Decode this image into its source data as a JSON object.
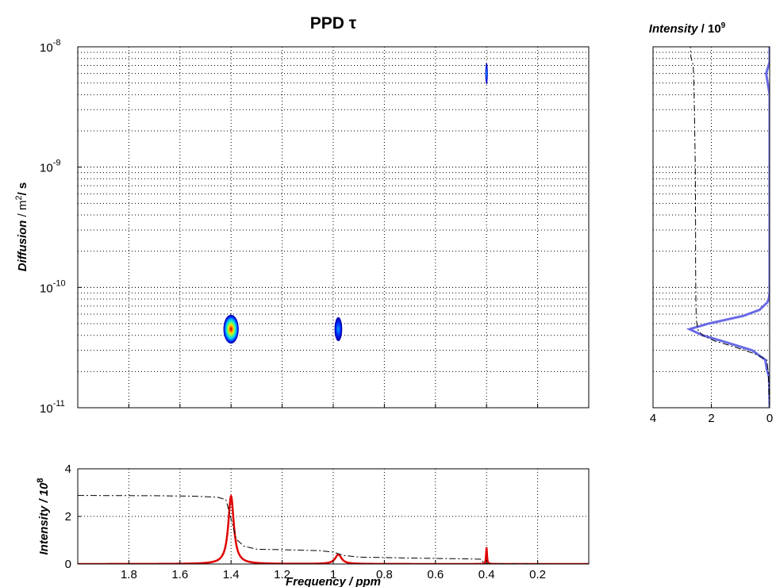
{
  "chart_data": [
    {
      "panel": "main-2d",
      "type": "heatmap",
      "title": "PPD τ",
      "xlabel": "Frequency /  ppm",
      "ylabel_prefix": "Diffusion",
      "ylabel_unit_base": "/  m",
      "ylabel_unit_sup": "2",
      "ylabel_unit_tail": "/ s",
      "xlim": [
        2.0,
        0.0
      ],
      "ylim": [
        1e-11,
        1e-08
      ],
      "yscale": "log",
      "x_ticks": [
        {
          "value": 1.8,
          "label": "1.8"
        },
        {
          "value": 1.6,
          "label": "1.6"
        },
        {
          "value": 1.4,
          "label": "1.4"
        },
        {
          "value": 1.2,
          "label": "1.2"
        },
        {
          "value": 1.0,
          "label": "1"
        },
        {
          "value": 0.8,
          "label": "0.8"
        },
        {
          "value": 0.6,
          "label": "0.6"
        },
        {
          "value": 0.4,
          "label": "0.4"
        },
        {
          "value": 0.2,
          "label": "0.2"
        }
      ],
      "y_ticks": [
        {
          "value": 1e-08,
          "base": "10",
          "exp": "-8"
        },
        {
          "value": 1e-09,
          "base": "10",
          "exp": "-9"
        },
        {
          "value": 1e-10,
          "base": "10",
          "exp": "-10"
        },
        {
          "value": 1e-11,
          "base": "10",
          "exp": "-11"
        }
      ],
      "grid": true,
      "peaks": [
        {
          "x": 1.4,
          "y": 4.5e-11,
          "intensity": 1.0,
          "xwidth": 0.03,
          "ywidth_log": 0.12
        },
        {
          "x": 0.98,
          "y": 4.5e-11,
          "intensity": 0.35,
          "xwidth": 0.015,
          "ywidth_log": 0.1
        },
        {
          "x": 0.4,
          "y": 6e-09,
          "intensity": 0.3,
          "xwidth": 0.005,
          "ywidth_log": 0.09
        }
      ]
    },
    {
      "panel": "bottom-spectrum",
      "type": "line",
      "ylabel_text": "Intensity / 10",
      "ylabel_sup": "8",
      "xlim": [
        2.0,
        0.0
      ],
      "ylim": [
        0,
        4
      ],
      "y_ticks": [
        0,
        2,
        4
      ],
      "grid": true,
      "series": [
        {
          "color": "#e00000",
          "style": "solid",
          "peaks": [
            {
              "x": 1.4,
              "height": 2.85,
              "width": 0.013
            },
            {
              "x": 0.98,
              "height": 0.4,
              "width": 0.015
            },
            {
              "x": 0.4,
              "height": 0.7,
              "width": 0.002
            }
          ]
        },
        {
          "color": "#000000",
          "style": "dash-dot",
          "x": [
            2.0,
            1.7,
            1.55,
            1.5,
            1.45,
            1.42,
            1.4,
            1.38,
            1.35,
            1.3,
            1.2,
            1.05,
            1.0,
            0.96,
            0.9,
            0.7,
            0.5,
            0.42,
            0.41,
            0.39,
            0.3,
            0.1,
            0.0
          ],
          "y": [
            2.88,
            2.87,
            2.85,
            2.83,
            2.8,
            2.7,
            1.9,
            1.05,
            0.75,
            0.62,
            0.6,
            0.56,
            0.5,
            0.36,
            0.29,
            0.25,
            0.22,
            0.2,
            0.02,
            0.01,
            0.01,
            0.0,
            0.0
          ]
        }
      ]
    },
    {
      "panel": "right-projection",
      "type": "line",
      "title_text": "Intensity",
      "title_sep": " / 10",
      "title_sup": "9",
      "xlim": [
        4,
        0
      ],
      "x_ticks": [
        4,
        2,
        0
      ],
      "ylim": [
        1e-11,
        1e-08
      ],
      "yscale": "log",
      "grid": true,
      "series": [
        {
          "color": "#6a6ae6",
          "style": "solid",
          "d": [
            1e-11,
            1.8e-11,
            2.1e-11,
            2.5e-11,
            3e-11,
            3.5e-11,
            4e-11,
            4.5e-11,
            5e-11,
            5.8e-11,
            6.5e-11,
            7.5e-11,
            8e-11,
            9e-11,
            1.5e-10,
            3e-10,
            1e-09,
            4e-09,
            6e-09,
            7.5e-09,
            1e-08
          ],
          "intensity": [
            0.0,
            0.02,
            0.1,
            0.15,
            0.6,
            1.5,
            2.3,
            2.75,
            2.1,
            0.9,
            0.35,
            0.08,
            0.03,
            0.0,
            0.0,
            0.0,
            0.0,
            0.0,
            0.12,
            0.0,
            0.0
          ]
        },
        {
          "color": "#000000",
          "style": "dash-dot",
          "d": [
            1e-11,
            2e-11,
            2.5e-11,
            2.8e-11,
            3.2e-11,
            3.6e-11,
            4e-11,
            4.4e-11,
            5e-11,
            6e-11,
            8e-11,
            1.5e-10,
            3e-10,
            1e-09,
            3e-09,
            5e-09,
            7e-09,
            8.2e-09,
            1e-08
          ],
          "intensity": [
            0.0,
            0.05,
            0.1,
            0.5,
            1.2,
            1.9,
            2.3,
            2.45,
            2.5,
            2.52,
            2.53,
            2.54,
            2.54,
            2.55,
            2.58,
            2.6,
            2.62,
            2.7,
            2.72
          ]
        }
      ]
    }
  ]
}
